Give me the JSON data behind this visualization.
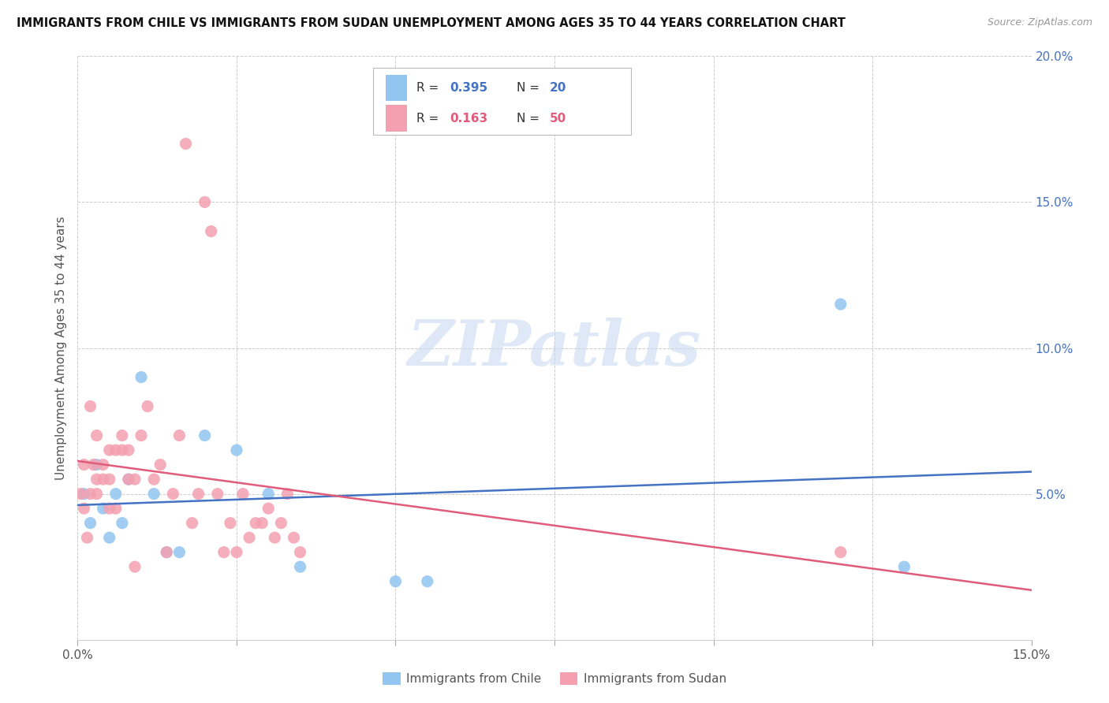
{
  "title": "IMMIGRANTS FROM CHILE VS IMMIGRANTS FROM SUDAN UNEMPLOYMENT AMONG AGES 35 TO 44 YEARS CORRELATION CHART",
  "source": "Source: ZipAtlas.com",
  "ylabel": "Unemployment Among Ages 35 to 44 years",
  "chile_label": "Immigrants from Chile",
  "sudan_label": "Immigrants from Sudan",
  "xlim": [
    0.0,
    0.15
  ],
  "ylim": [
    0.0,
    0.2
  ],
  "xticks": [
    0.0,
    0.025,
    0.05,
    0.075,
    0.1,
    0.125,
    0.15
  ],
  "yticks": [
    0.0,
    0.05,
    0.1,
    0.15,
    0.2
  ],
  "xtick_labels": [
    "0.0%",
    "",
    "",
    "",
    "",
    "",
    "15.0%"
  ],
  "ytick_labels": [
    "",
    "5.0%",
    "10.0%",
    "15.0%",
    "20.0%"
  ],
  "legend_r_chile": "0.395",
  "legend_n_chile": "20",
  "legend_r_sudan": "0.163",
  "legend_n_sudan": "50",
  "chile_color": "#92c5f0",
  "sudan_color": "#f4a0b0",
  "chile_line_color": "#4472c4",
  "sudan_line_color": "#e05c7a",
  "watermark": "ZIPatlas",
  "chile_scatter_x": [
    0.001,
    0.002,
    0.003,
    0.004,
    0.005,
    0.006,
    0.007,
    0.008,
    0.01,
    0.012,
    0.014,
    0.016,
    0.02,
    0.025,
    0.03,
    0.035,
    0.05,
    0.055,
    0.12,
    0.13
  ],
  "chile_scatter_y": [
    0.05,
    0.04,
    0.06,
    0.045,
    0.035,
    0.05,
    0.04,
    0.055,
    0.09,
    0.05,
    0.03,
    0.03,
    0.07,
    0.065,
    0.05,
    0.025,
    0.02,
    0.02,
    0.115,
    0.025
  ],
  "sudan_scatter_x": [
    0.0005,
    0.001,
    0.001,
    0.0015,
    0.002,
    0.002,
    0.0025,
    0.003,
    0.003,
    0.003,
    0.004,
    0.004,
    0.005,
    0.005,
    0.005,
    0.006,
    0.006,
    0.007,
    0.007,
    0.008,
    0.008,
    0.009,
    0.009,
    0.01,
    0.011,
    0.012,
    0.013,
    0.014,
    0.015,
    0.016,
    0.017,
    0.018,
    0.019,
    0.02,
    0.021,
    0.022,
    0.023,
    0.024,
    0.025,
    0.026,
    0.027,
    0.028,
    0.029,
    0.03,
    0.031,
    0.032,
    0.033,
    0.034,
    0.035,
    0.12
  ],
  "sudan_scatter_y": [
    0.05,
    0.045,
    0.06,
    0.035,
    0.08,
    0.05,
    0.06,
    0.05,
    0.055,
    0.07,
    0.055,
    0.06,
    0.055,
    0.065,
    0.045,
    0.045,
    0.065,
    0.065,
    0.07,
    0.055,
    0.065,
    0.025,
    0.055,
    0.07,
    0.08,
    0.055,
    0.06,
    0.03,
    0.05,
    0.07,
    0.17,
    0.04,
    0.05,
    0.15,
    0.14,
    0.05,
    0.03,
    0.04,
    0.03,
    0.05,
    0.035,
    0.04,
    0.04,
    0.045,
    0.035,
    0.04,
    0.05,
    0.035,
    0.03,
    0.03
  ]
}
